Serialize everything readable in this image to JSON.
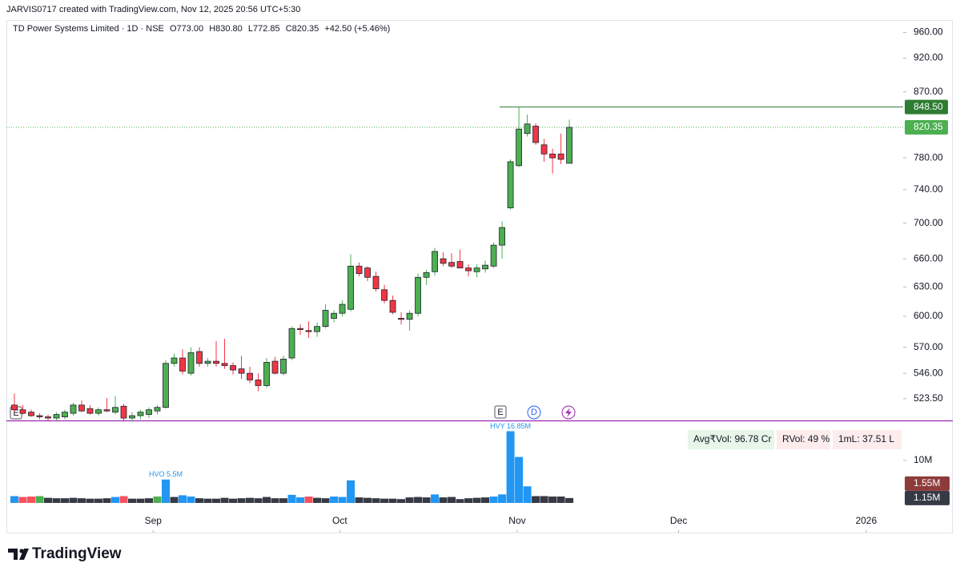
{
  "chart_data": {
    "type": "candlestick",
    "credit": "JARVIS0717 created with TradingView.com, Nov 12, 2025 20:56 UTC+5:30",
    "title": "TD Power Systems Limited · 1D · NSE",
    "ohlc_legend": [
      "O773.00",
      "H830.80",
      "L772.85",
      "C820.35",
      "+42.50 (+5.46%)"
    ],
    "open": [
      518,
      514,
      512,
      509,
      508,
      507,
      508,
      511,
      518,
      515,
      511,
      514,
      512,
      517,
      507,
      509,
      510,
      513,
      516,
      555,
      560,
      546,
      566,
      555,
      557,
      555,
      553,
      550,
      546,
      540,
      535,
      557,
      546,
      560,
      588,
      586,
      585,
      590,
      598,
      603,
      607,
      652,
      650,
      641,
      627,
      616,
      598,
      597,
      603,
      640,
      646,
      660,
      656,
      657,
      650,
      646,
      649,
      652,
      675,
      718,
      770,
      812,
      822,
      797,
      785,
      785,
      773
    ],
    "high": [
      528,
      518,
      514,
      511,
      510,
      512,
      514,
      520,
      522,
      518,
      516,
      524,
      526,
      519,
      512,
      514,
      516,
      518,
      558,
      564,
      568,
      570,
      570,
      560,
      576,
      578,
      556,
      562,
      552,
      546,
      560,
      561,
      562,
      590,
      592,
      595,
      594,
      612,
      606,
      616,
      665,
      656,
      652,
      646,
      632,
      621,
      604,
      606,
      644,
      648,
      672,
      667,
      666,
      670,
      654,
      654,
      658,
      678,
      702,
      778,
      848.5,
      838,
      826,
      805,
      792,
      812,
      830.8
    ],
    "low": [
      512,
      510,
      508,
      506,
      505,
      505,
      506,
      509,
      512,
      510,
      509,
      512,
      510,
      505,
      504,
      506,
      507,
      510,
      515,
      552,
      545,
      544,
      552,
      552,
      552,
      550,
      545,
      541,
      537,
      530,
      533,
      545,
      544,
      558,
      582,
      579,
      580,
      588,
      594,
      600,
      605,
      641,
      636,
      625,
      613,
      602,
      592,
      586,
      600,
      632,
      642,
      652,
      650,
      650,
      641,
      640,
      645,
      650,
      660,
      716,
      768,
      808,
      797,
      775,
      760,
      772,
      772.85
    ],
    "close": [
      514,
      511,
      509,
      508,
      507,
      510,
      512,
      518,
      513,
      511,
      514,
      513,
      516,
      507,
      509,
      512,
      514,
      516,
      555,
      560,
      548,
      565,
      555,
      557,
      555,
      553,
      549,
      546,
      540,
      535,
      556,
      546,
      559,
      588,
      587,
      585,
      590,
      606,
      603,
      612,
      652,
      644,
      640,
      628,
      616,
      604,
      597,
      603,
      640,
      645,
      668,
      655,
      652,
      650,
      647,
      650,
      653,
      675,
      695,
      775,
      818,
      825,
      800,
      785,
      780,
      778,
      820.35
    ],
    "up_color": "#4caf50",
    "down_color": "#f23645",
    "log_scale": true,
    "ylim": [
      505,
      976
    ],
    "yticks": [
      {
        "value": 523.5,
        "label": "523.50"
      },
      {
        "value": 546,
        "label": "546.00"
      },
      {
        "value": 570,
        "label": "570.00"
      },
      {
        "value": 600,
        "label": "600.00"
      },
      {
        "value": 630,
        "label": "630.00"
      },
      {
        "value": 660,
        "label": "660.00"
      },
      {
        "value": 700,
        "label": "700.00"
      },
      {
        "value": 740,
        "label": "740.00"
      },
      {
        "value": 780,
        "label": "780.00"
      },
      {
        "value": 870,
        "label": "870.00"
      },
      {
        "value": 920,
        "label": "920.00"
      },
      {
        "value": 960,
        "label": "960.00"
      }
    ],
    "xlim": [
      -0.95,
      105.7
    ],
    "xticks": [
      {
        "value": 16.5,
        "label": "Sep"
      },
      {
        "value": 38.7,
        "label": "Oct"
      },
      {
        "value": 59.8,
        "label": "Nov"
      },
      {
        "value": 79,
        "label": "Dec"
      },
      {
        "value": 101.3,
        "label": "2026"
      }
    ],
    "grid": false,
    "price_lines": [
      {
        "value": 848.5,
        "label": "848.50",
        "color": "#2e7d32",
        "style": "solid"
      },
      {
        "value": 820.35,
        "label": "820.35",
        "color": "#4caf50",
        "style": "dotted"
      }
    ],
    "events": [
      "E",
      "E",
      "D"
    ],
    "stats": [
      "Avg₹Vol: 96.78 Cr",
      "RVol: 49 %",
      "1mL: 37.51 L"
    ],
    "volume": {
      "values": [
        1.6,
        1.4,
        1.5,
        1.6,
        1.2,
        1.1,
        1.1,
        1.2,
        1.1,
        1.0,
        1.0,
        1.1,
        1.4,
        1.6,
        1.0,
        1.0,
        1.1,
        1.5,
        5.5,
        1.4,
        1.8,
        1.5,
        1.1,
        1.0,
        1.0,
        1.2,
        1.0,
        1.1,
        1.2,
        1.1,
        1.4,
        1.1,
        1.1,
        1.9,
        1.3,
        1.5,
        1.2,
        1.1,
        1.5,
        1.4,
        5.3,
        1.3,
        1.2,
        1.1,
        1.0,
        1.0,
        0.9,
        1.3,
        1.4,
        1.3,
        2.0,
        1.3,
        1.4,
        0.9,
        1.1,
        1.2,
        1.3,
        1.5,
        2.0,
        16.85,
        10.8,
        3.9,
        1.6,
        1.6,
        1.5,
        1.5,
        1.15
      ],
      "colors": [
        "#2196f3",
        "#f7525f",
        "#f7525f",
        "#4caf50",
        "#363a45",
        "#363a45",
        "#363a45",
        "#363a45",
        "#363a45",
        "#363a45",
        "#363a45",
        "#363a45",
        "#2196f3",
        "#f7525f",
        "#363a45",
        "#363a45",
        "#363a45",
        "#4caf50",
        "#2196f3",
        "#363a45",
        "#2196f3",
        "#2196f3",
        "#363a45",
        "#363a45",
        "#363a45",
        "#363a45",
        "#363a45",
        "#363a45",
        "#363a45",
        "#363a45",
        "#363a45",
        "#363a45",
        "#363a45",
        "#2196f3",
        "#2196f3",
        "#f7525f",
        "#363a45",
        "#363a45",
        "#2196f3",
        "#2196f3",
        "#2196f3",
        "#363a45",
        "#363a45",
        "#363a45",
        "#363a45",
        "#363a45",
        "#363a45",
        "#363a45",
        "#363a45",
        "#363a45",
        "#2196f3",
        "#363a45",
        "#363a45",
        "#363a45",
        "#363a45",
        "#363a45",
        "#363a45",
        "#2196f3",
        "#2196f3",
        "#2196f3",
        "#2196f3",
        "#2196f3",
        "#363a45",
        "#363a45",
        "#363a45",
        "#363a45",
        "#363a45"
      ],
      "value_labels": [
        null,
        null,
        null,
        null,
        null,
        null,
        null,
        null,
        null,
        null,
        null,
        null,
        null,
        null,
        null,
        null,
        null,
        null,
        "HVO 5.5M",
        null,
        null,
        null,
        null,
        null,
        null,
        null,
        null,
        null,
        null,
        null,
        null,
        null,
        null,
        null,
        null,
        null,
        null,
        null,
        null,
        null,
        null,
        null,
        null,
        null,
        null,
        null,
        null,
        null,
        null,
        null,
        null,
        null,
        null,
        null,
        null,
        null,
        null,
        null,
        null,
        "HVY 16.85M",
        null,
        null,
        null,
        null,
        null,
        null,
        null
      ],
      "ylim": [
        0,
        17.5
      ],
      "yticks": [
        {
          "value": 10,
          "label": "10M"
        }
      ],
      "badges": [
        {
          "value": 1.55,
          "label": "1.55M",
          "color": "#8e3b3b"
        },
        {
          "value": 1.15,
          "label": "1.15M",
          "color": "#363a45"
        }
      ]
    },
    "brand": "TradingView"
  }
}
